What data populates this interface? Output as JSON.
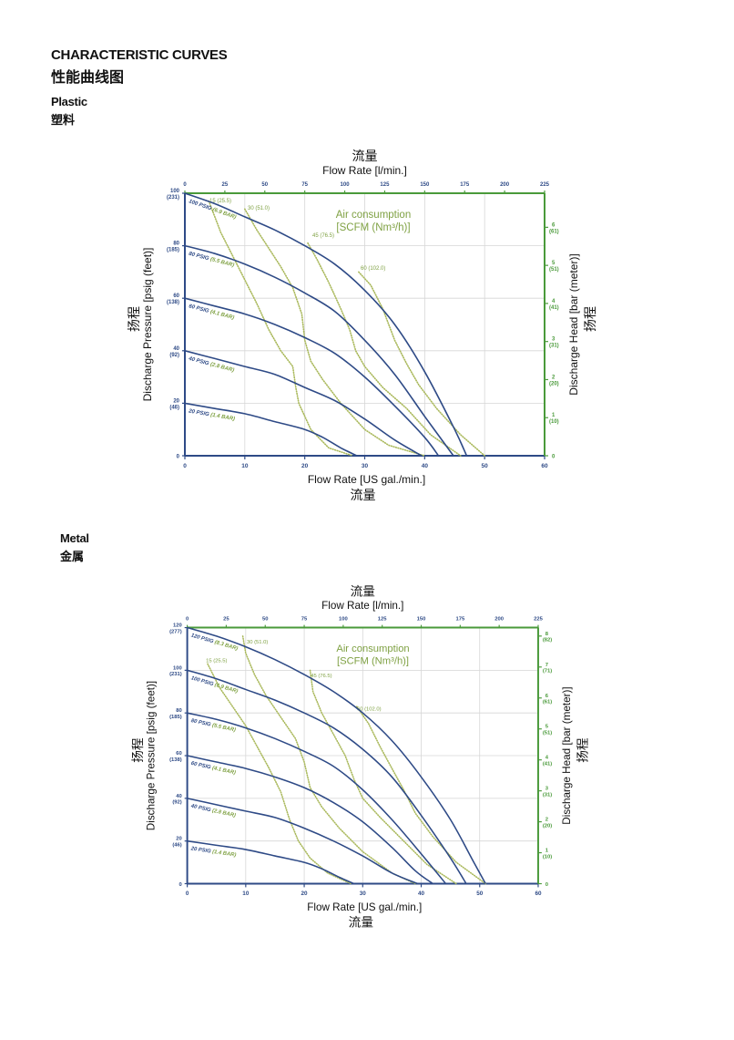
{
  "header": {
    "title": "CHARACTERISTIC CURVES",
    "title_cn": "性能曲线图"
  },
  "sections": [
    {
      "label": "Plastic",
      "label_cn": "塑料"
    },
    {
      "label": "Metal",
      "label_cn": "金属"
    }
  ],
  "colors": {
    "blue": "#2e4a86",
    "green": "#7fa143",
    "dots": "#a9b85a",
    "grid": "#d6d6d6",
    "axis_green": "#4a9a3a"
  },
  "chart_data": [
    {
      "type": "line",
      "id": "plastic",
      "top_axis_title_cn": "流量",
      "top_axis_title": "Flow Rate  [l/min.]",
      "top_ticks": [
        "0",
        "25",
        "50",
        "75",
        "100",
        "125",
        "150",
        "175",
        "200",
        "225"
      ],
      "top_range": [
        0,
        225
      ],
      "xlabel": "Flow Rate [US gal./min.]",
      "xlabel_cn": "流量",
      "x_ticks": [
        "0",
        "10",
        "20",
        "30",
        "40",
        "50",
        "60"
      ],
      "xlim": [
        0,
        60
      ],
      "ylabel": "Discharge Pressure [psig (feet)]",
      "ylabel_cn": "扬程",
      "ylim": [
        0,
        100
      ],
      "y_ticks": [
        {
          "v": 0,
          "a": "0",
          "b": ""
        },
        {
          "v": 20,
          "a": "20",
          "b": "(46)"
        },
        {
          "v": 40,
          "a": "40",
          "b": "(92)"
        },
        {
          "v": 60,
          "a": "60",
          "b": "(138)"
        },
        {
          "v": 80,
          "a": "80",
          "b": "(185)"
        },
        {
          "v": 100,
          "a": "100",
          "b": "(231)"
        }
      ],
      "y2label": "Discharge Head [bar (meter)]",
      "y2label_cn": "扬程",
      "y2_ticks": [
        {
          "v": 0,
          "a": "0",
          "b": ""
        },
        {
          "v": 1,
          "a": "1",
          "b": "(10)"
        },
        {
          "v": 2,
          "a": "2",
          "b": "(20)"
        },
        {
          "v": 3,
          "a": "3",
          "b": "(31)"
        },
        {
          "v": 4,
          "a": "4",
          "b": "(41)"
        },
        {
          "v": 5,
          "a": "5",
          "b": "(51)"
        },
        {
          "v": 6,
          "a": "6",
          "b": "(61)"
        }
      ],
      "y2_factor": 14.5038,
      "air_title": "Air consumption",
      "air_subtitle": "[SCFM (Nm³/h)]",
      "series": [
        {
          "name": "100 PSIG (6.9 BAR)",
          "points": [
            [
              0,
              100
            ],
            [
              5,
              96
            ],
            [
              10,
              91
            ],
            [
              15,
              86
            ],
            [
              20,
              80
            ],
            [
              25,
              73
            ],
            [
              30,
              63
            ],
            [
              35,
              50
            ],
            [
              40,
              32
            ],
            [
              45,
              10
            ],
            [
              47,
              0
            ]
          ]
        },
        {
          "name": "80 PSIG (5.5 BAR)",
          "points": [
            [
              0,
              80
            ],
            [
              5,
              77
            ],
            [
              10,
              73
            ],
            [
              15,
              68
            ],
            [
              20,
              62
            ],
            [
              25,
              55
            ],
            [
              30,
              44
            ],
            [
              35,
              31
            ],
            [
              40,
              15
            ],
            [
              44.8,
              0
            ]
          ]
        },
        {
          "name": "60 PSIG (4.1 BAR)",
          "points": [
            [
              0,
              60
            ],
            [
              5,
              57
            ],
            [
              10,
              54
            ],
            [
              15,
              50
            ],
            [
              20,
              45
            ],
            [
              25,
              39
            ],
            [
              30,
              30
            ],
            [
              35,
              19
            ],
            [
              40,
              7
            ],
            [
              42.3,
              0
            ]
          ]
        },
        {
          "name": "40 PSIG (2.8 BAR)",
          "points": [
            [
              0,
              40
            ],
            [
              5,
              37
            ],
            [
              10,
              34
            ],
            [
              15,
              31
            ],
            [
              20,
              26
            ],
            [
              25,
              21
            ],
            [
              30,
              14
            ],
            [
              35,
              6
            ],
            [
              39.5,
              0
            ]
          ]
        },
        {
          "name": "20 PSIG (1.4 BAR)",
          "points": [
            [
              0,
              20
            ],
            [
              5,
              18
            ],
            [
              10,
              16
            ],
            [
              15,
              13
            ],
            [
              20,
              10
            ],
            [
              23,
              7
            ],
            [
              26,
              3
            ],
            [
              28.7,
              0
            ]
          ]
        }
      ],
      "air_lines": [
        {
          "name": "15 (25.5)",
          "points": [
            [
              4,
              97
            ],
            [
              6,
              85
            ],
            [
              8,
              76
            ],
            [
              10,
              67
            ],
            [
              12,
              58
            ],
            [
              14,
              48
            ],
            [
              16,
              40
            ],
            [
              18,
              34
            ],
            [
              18.5,
              26
            ],
            [
              19,
              20
            ],
            [
              21,
              10
            ],
            [
              24,
              3
            ],
            [
              28,
              0
            ]
          ]
        },
        {
          "name": "30 (51.0)",
          "points": [
            [
              10,
              94
            ],
            [
              12,
              86
            ],
            [
              14,
              79
            ],
            [
              16,
              72
            ],
            [
              18,
              64
            ],
            [
              19.5,
              54
            ],
            [
              20,
              44
            ],
            [
              21,
              36
            ],
            [
              23,
              29
            ],
            [
              26,
              20
            ],
            [
              30,
              10
            ],
            [
              34,
              4
            ],
            [
              40,
              0
            ]
          ]
        },
        {
          "name": "45 (76.5)",
          "points": [
            [
              20.5,
              81
            ],
            [
              22,
              75
            ],
            [
              24,
              66
            ],
            [
              26,
              56
            ],
            [
              27.5,
              48
            ],
            [
              28.5,
              40
            ],
            [
              30,
              34
            ],
            [
              33,
              26
            ],
            [
              37,
              18
            ],
            [
              41,
              8
            ],
            [
              46,
              0
            ]
          ]
        },
        {
          "name": "60 (102.0)",
          "points": [
            [
              29,
              70
            ],
            [
              31,
              65
            ],
            [
              33,
              56
            ],
            [
              35,
              44
            ],
            [
              37,
              35
            ],
            [
              39,
              27
            ],
            [
              42,
              18
            ],
            [
              46,
              8
            ],
            [
              50,
              0
            ]
          ]
        }
      ]
    },
    {
      "type": "line",
      "id": "metal",
      "top_axis_title_cn": "流量",
      "top_axis_title": "Flow Rate  [l/min.]",
      "top_ticks": [
        "0",
        "25",
        "50",
        "75",
        "100",
        "125",
        "150",
        "175",
        "200",
        "225"
      ],
      "top_range": [
        0,
        225
      ],
      "xlabel": "Flow Rate [US gal./min.]",
      "xlabel_cn": "流量",
      "x_ticks": [
        "0",
        "10",
        "20",
        "30",
        "40",
        "50",
        "60"
      ],
      "xlim": [
        0,
        60
      ],
      "ylabel": "Discharge Pressure [psig (feet)]",
      "ylabel_cn": "扬程",
      "ylim": [
        0,
        120
      ],
      "y_ticks": [
        {
          "v": 0,
          "a": "0",
          "b": ""
        },
        {
          "v": 20,
          "a": "20",
          "b": "(46)"
        },
        {
          "v": 40,
          "a": "40",
          "b": "(92)"
        },
        {
          "v": 60,
          "a": "60",
          "b": "(138)"
        },
        {
          "v": 80,
          "a": "80",
          "b": "(185)"
        },
        {
          "v": 100,
          "a": "100",
          "b": "(231)"
        },
        {
          "v": 120,
          "a": "120",
          "b": "(277)"
        }
      ],
      "y2label": "Discharge Head [bar (meter)]",
      "y2label_cn": "扬程",
      "y2_ticks": [
        {
          "v": 0,
          "a": "0",
          "b": ""
        },
        {
          "v": 1,
          "a": "1",
          "b": "(10)"
        },
        {
          "v": 2,
          "a": "2",
          "b": "(20)"
        },
        {
          "v": 3,
          "a": "3",
          "b": "(31)"
        },
        {
          "v": 4,
          "a": "4",
          "b": "(41)"
        },
        {
          "v": 5,
          "a": "5",
          "b": "(51)"
        },
        {
          "v": 6,
          "a": "6",
          "b": "(61)"
        },
        {
          "v": 7,
          "a": "7",
          "b": "(71)"
        },
        {
          "v": 8,
          "a": "8",
          "b": "(82)"
        }
      ],
      "y2_factor": 14.5038,
      "air_title": "Air consumption",
      "air_subtitle": "[SCFM (Nm³/h)]",
      "series": [
        {
          "name": "120 PSIG (8.3 BAR)",
          "points": [
            [
              0,
              120
            ],
            [
              5,
              116
            ],
            [
              10,
              111
            ],
            [
              15,
              105
            ],
            [
              20,
              98
            ],
            [
              25,
              90
            ],
            [
              30,
              80
            ],
            [
              35,
              67
            ],
            [
              40,
              50
            ],
            [
              45,
              30
            ],
            [
              49,
              10
            ],
            [
              51,
              0
            ]
          ]
        },
        {
          "name": "100 PSIG (6.9 BAR)",
          "points": [
            [
              0,
              100
            ],
            [
              5,
              96
            ],
            [
              10,
              91
            ],
            [
              15,
              86
            ],
            [
              20,
              80
            ],
            [
              25,
              73
            ],
            [
              30,
              63
            ],
            [
              35,
              50
            ],
            [
              40,
              32
            ],
            [
              45,
              12
            ],
            [
              47.7,
              0
            ]
          ]
        },
        {
          "name": "80 PSIG (5.5 BAR)",
          "points": [
            [
              0,
              80
            ],
            [
              5,
              77
            ],
            [
              10,
              73
            ],
            [
              15,
              68
            ],
            [
              20,
              62
            ],
            [
              25,
              55
            ],
            [
              30,
              44
            ],
            [
              35,
              30
            ],
            [
              40,
              14
            ],
            [
              44.2,
              0
            ]
          ]
        },
        {
          "name": "60 PSIG (4.1 BAR)",
          "points": [
            [
              0,
              60
            ],
            [
              5,
              57
            ],
            [
              10,
              54
            ],
            [
              15,
              50
            ],
            [
              20,
              45
            ],
            [
              25,
              38
            ],
            [
              30,
              29
            ],
            [
              35,
              17
            ],
            [
              39,
              6
            ],
            [
              42,
              0
            ]
          ]
        },
        {
          "name": "40 PSIG (2.8 BAR)",
          "points": [
            [
              0,
              40
            ],
            [
              5,
              37
            ],
            [
              10,
              34
            ],
            [
              15,
              31
            ],
            [
              20,
              26
            ],
            [
              25,
              20
            ],
            [
              30,
              13
            ],
            [
              35,
              5
            ],
            [
              39.4,
              0
            ]
          ]
        },
        {
          "name": "20 PSIG (1.4 BAR)",
          "points": [
            [
              0,
              20
            ],
            [
              5,
              18
            ],
            [
              10,
              16
            ],
            [
              15,
              13
            ],
            [
              20,
              10
            ],
            [
              23,
              7
            ],
            [
              26,
              3
            ],
            [
              28.5,
              0
            ]
          ]
        }
      ],
      "air_lines": [
        {
          "name": "15 (25.5)",
          "points": [
            [
              3.5,
              103
            ],
            [
              5.5,
              92
            ],
            [
              8,
              82
            ],
            [
              10,
              74
            ],
            [
              12,
              64
            ],
            [
              14,
              54
            ],
            [
              16,
              43
            ],
            [
              17.5,
              30
            ],
            [
              19,
              20
            ],
            [
              21,
              12
            ],
            [
              24,
              5
            ],
            [
              28,
              0
            ]
          ]
        },
        {
          "name": "30 (51.0)",
          "points": [
            [
              9.5,
              116
            ],
            [
              10,
              108
            ],
            [
              11.5,
              98
            ],
            [
              13.5,
              88
            ],
            [
              16,
              78
            ],
            [
              18.5,
              68
            ],
            [
              20,
              57
            ],
            [
              21,
              45
            ],
            [
              23,
              36
            ],
            [
              26,
              26
            ],
            [
              30,
              15
            ],
            [
              35,
              5
            ],
            [
              39,
              0
            ]
          ]
        },
        {
          "name": "45 (76.5)",
          "points": [
            [
              21,
              100
            ],
            [
              21.5,
              90
            ],
            [
              23,
              80
            ],
            [
              25,
              70
            ],
            [
              27,
              60
            ],
            [
              28.5,
              49
            ],
            [
              30,
              40
            ],
            [
              33,
              31
            ],
            [
              37,
              20
            ],
            [
              41,
              9
            ],
            [
              46,
              0
            ]
          ]
        },
        {
          "name": "60 (102.0)",
          "points": [
            [
              29,
              83
            ],
            [
              31,
              75
            ],
            [
              33,
              64
            ],
            [
              35,
              54
            ],
            [
              37,
              44
            ],
            [
              39,
              33
            ],
            [
              42,
              22
            ],
            [
              46,
              10
            ],
            [
              51,
              0
            ]
          ]
        }
      ]
    }
  ]
}
